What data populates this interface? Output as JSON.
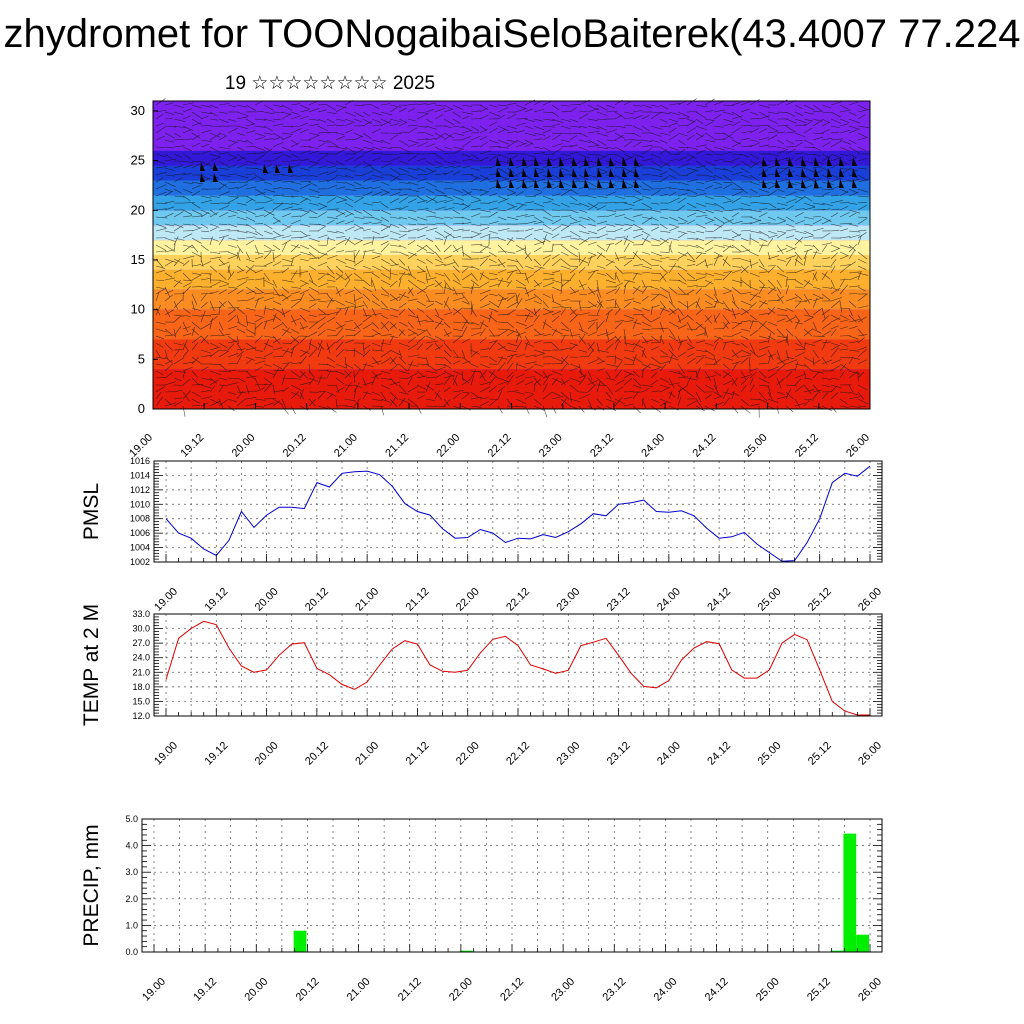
{
  "title": "zhydromet for TOONogaibaiSeloBaiterek(43.4007 77.224",
  "subtitle": "19 ☆☆☆☆☆☆☆☆ 2025",
  "x_ticks": [
    "19.00",
    "19.12",
    "20.00",
    "20.12",
    "21.00",
    "21.12",
    "22.00",
    "22.12",
    "23.00",
    "23.12",
    "24.00",
    "24.12",
    "25.00",
    "25.12",
    "26.00"
  ],
  "chart_data": [
    {
      "type": "heatmap",
      "title": "",
      "ylabel": "",
      "xlim": [
        0,
        168
      ],
      "ylim": [
        0,
        31
      ],
      "y_ticks": [
        0,
        5,
        10,
        15,
        20,
        25,
        30
      ],
      "color_bands": [
        {
          "from": 0,
          "to": 4,
          "color": "#e81a0c"
        },
        {
          "from": 4,
          "to": 7,
          "color": "#f23a10"
        },
        {
          "from": 7,
          "to": 10,
          "color": "#f86418"
        },
        {
          "from": 10,
          "to": 12,
          "color": "#fb8c22"
        },
        {
          "from": 12,
          "to": 14,
          "color": "#fdb02e"
        },
        {
          "from": 14,
          "to": 15.5,
          "color": "#fed25c"
        },
        {
          "from": 15.5,
          "to": 17,
          "color": "#fff3a0"
        },
        {
          "from": 17,
          "to": 18.5,
          "color": "#bfe8f5"
        },
        {
          "from": 18.5,
          "to": 20,
          "color": "#6fc8ee"
        },
        {
          "from": 20,
          "to": 21.5,
          "color": "#33a2e6"
        },
        {
          "from": 21.5,
          "to": 23,
          "color": "#1f6fe0"
        },
        {
          "from": 23,
          "to": 24.5,
          "color": "#1a3ed8"
        },
        {
          "from": 24.5,
          "to": 26,
          "color": "#3318d8"
        },
        {
          "from": 26,
          "to": 31,
          "color": "#7d22ee"
        }
      ]
    },
    {
      "type": "line",
      "ylabel": "PMSL",
      "ylim": [
        1002,
        1016
      ],
      "y_ticks": [
        1002,
        1004,
        1006,
        1008,
        1010,
        1012,
        1014,
        1016
      ],
      "grid": true,
      "series": [
        {
          "color": "#0000cc",
          "x": [
            0,
            3,
            6,
            9,
            12,
            15,
            18,
            21,
            24,
            27,
            30,
            33,
            36,
            39,
            42,
            45,
            48,
            51,
            54,
            57,
            60,
            63,
            66,
            69,
            72,
            75,
            78,
            81,
            84,
            87,
            90,
            93,
            96,
            99,
            102,
            105,
            108,
            111,
            114,
            117,
            120,
            123,
            126,
            129,
            132,
            135,
            138,
            141,
            144,
            147,
            150,
            153,
            156,
            159,
            162,
            165,
            168
          ],
          "values": [
            1008,
            1006,
            1005.3,
            1003.8,
            1002.9,
            1005,
            1009,
            1006.8,
            1008.5,
            1009.6,
            1009.6,
            1009.4,
            1013,
            1012.4,
            1014.3,
            1014.5,
            1014.6,
            1014.1,
            1012.5,
            1010.1,
            1009,
            1008.5,
            1006.6,
            1005.3,
            1005.4,
            1006.5,
            1006,
            1004.7,
            1005.3,
            1005.2,
            1005.8,
            1005.4,
            1006.2,
            1007.3,
            1008.7,
            1008.4,
            1010,
            1010.2,
            1010.6,
            1009,
            1008.9,
            1009.1,
            1008.4,
            1006.7,
            1005.3,
            1005.5,
            1006.1,
            1004.5,
            1003.3,
            1002.1,
            1002.2,
            1004.7,
            1008,
            1013,
            1014.3,
            1013.9,
            1015.3
          ]
        }
      ]
    },
    {
      "type": "line",
      "ylabel": "TEMP at 2 M",
      "ylim": [
        12,
        33
      ],
      "y_ticks": [
        "12.0",
        "15.0",
        "18.0",
        "21.0",
        "24.0",
        "27.0",
        "30.0",
        "33.0"
      ],
      "grid": true,
      "series": [
        {
          "color": "#dd0000",
          "x": [
            0,
            3,
            6,
            9,
            12,
            15,
            18,
            21,
            24,
            27,
            30,
            33,
            36,
            39,
            42,
            45,
            48,
            51,
            54,
            57,
            60,
            63,
            66,
            69,
            72,
            75,
            78,
            81,
            84,
            87,
            90,
            93,
            96,
            99,
            102,
            105,
            108,
            111,
            114,
            117,
            120,
            123,
            126,
            129,
            132,
            135,
            138,
            141,
            144,
            147,
            150,
            153,
            156,
            159,
            162,
            165,
            168
          ],
          "values": [
            19.5,
            28,
            30,
            31.5,
            30.8,
            26,
            22.3,
            21,
            21.5,
            24.5,
            26.8,
            27.1,
            21.8,
            20.5,
            18.5,
            17.5,
            19,
            22.5,
            25.8,
            27.5,
            26.8,
            22.5,
            21.2,
            21,
            21.4,
            25,
            27.8,
            28.4,
            26.5,
            22.5,
            21.7,
            20.8,
            21.4,
            26.5,
            27.2,
            28,
            24.5,
            20.8,
            18.1,
            17.8,
            19.3,
            23.5,
            26,
            27.3,
            26.9,
            21.5,
            19.8,
            19.8,
            21.5,
            27,
            28.8,
            27.7,
            21.5,
            15,
            13,
            12.2,
            12.2
          ]
        }
      ]
    },
    {
      "type": "bar",
      "ylabel": "PRECIP, mm",
      "ylim": [
        0,
        5
      ],
      "y_ticks": [
        "0.0",
        "1.0",
        "2.0",
        "3.0",
        "4.0",
        "5.0"
      ],
      "grid": true,
      "series": [
        {
          "color": "#00ee00",
          "x": [
            30,
            33,
            72,
            159,
            162,
            165
          ],
          "values": [
            0.02,
            0.8,
            0.05,
            0.05,
            4.45,
            0.65
          ]
        }
      ]
    }
  ]
}
